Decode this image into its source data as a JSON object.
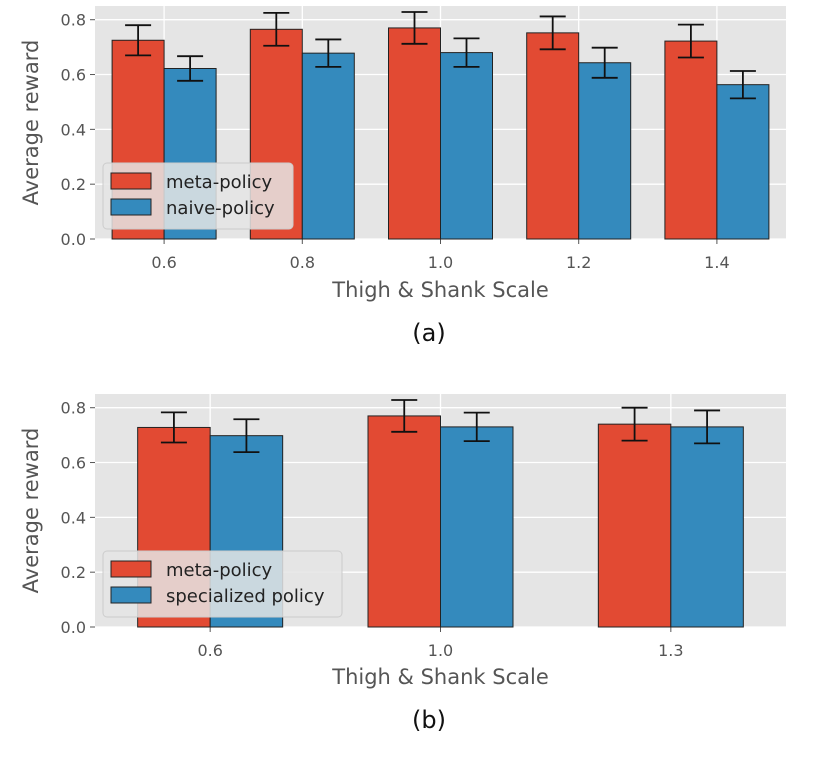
{
  "chart_data": [
    {
      "type": "bar",
      "caption": "(a)",
      "xlabel": "Thigh & Shank Scale",
      "ylabel": "Average reward",
      "ylim": [
        0,
        0.85
      ],
      "yticks": [
        "0.0",
        "0.2",
        "0.4",
        "0.6",
        "0.8"
      ],
      "categories": [
        "0.6",
        "0.8",
        "1.0",
        "1.2",
        "1.4"
      ],
      "grid": true,
      "legend_position": "lower-left",
      "series": [
        {
          "name": "meta-policy",
          "color": "#E24A33",
          "values": [
            0.725,
            0.765,
            0.77,
            0.752,
            0.722
          ],
          "errors": [
            0.055,
            0.06,
            0.058,
            0.06,
            0.06
          ]
        },
        {
          "name": "naive-policy",
          "color": "#348ABD",
          "values": [
            0.622,
            0.678,
            0.68,
            0.643,
            0.563
          ],
          "errors": [
            0.045,
            0.05,
            0.052,
            0.055,
            0.05
          ]
        }
      ]
    },
    {
      "type": "bar",
      "caption": "(b)",
      "xlabel": "Thigh & Shank Scale",
      "ylabel": "Average reward",
      "ylim": [
        0,
        0.85
      ],
      "yticks": [
        "0.0",
        "0.2",
        "0.4",
        "0.6",
        "0.8"
      ],
      "categories": [
        "0.6",
        "1.0",
        "1.3"
      ],
      "grid": true,
      "legend_position": "lower-left",
      "series": [
        {
          "name": "meta-policy",
          "color": "#E24A33",
          "values": [
            0.728,
            0.77,
            0.74
          ],
          "errors": [
            0.055,
            0.058,
            0.06
          ]
        },
        {
          "name": "specialized policy",
          "color": "#348ABD",
          "values": [
            0.698,
            0.73,
            0.73
          ],
          "errors": [
            0.06,
            0.052,
            0.06
          ]
        }
      ]
    }
  ]
}
